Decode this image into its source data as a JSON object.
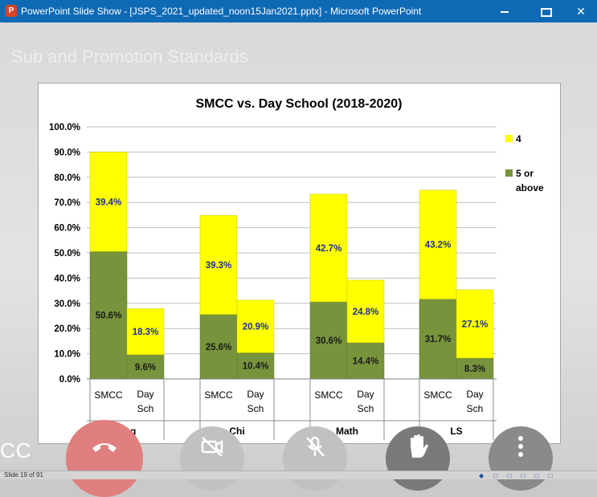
{
  "window": {
    "title": "PowerPoint Slide Show - [JSPS_2021_updated_noon15Jan2021.pptx] - Microsoft PowerPoint",
    "app_icon_letter": "P",
    "minimize_label": "—",
    "close_label": "✕"
  },
  "slide": {
    "ghost_title": "Sub and Promotion Standards"
  },
  "chart_data": {
    "type": "bar",
    "stacked": true,
    "title": "SMCC vs. Day School (2018-2020)",
    "groups": [
      "Eng",
      "Chi",
      "Math",
      "LS"
    ],
    "categories": [
      "SMCC",
      "Day Sch",
      "SMCC",
      "Day Sch",
      "SMCC",
      "Day Sch",
      "SMCC",
      "Day Sch"
    ],
    "series": [
      {
        "name": "5 or above",
        "color": "#77933c",
        "values": [
          50.6,
          9.6,
          25.6,
          10.4,
          30.6,
          14.4,
          31.7,
          8.3
        ],
        "labels": [
          "50.6%",
          "9.6%",
          "25.6%",
          "10.4%",
          "30.6%",
          "14.4%",
          "31.7%",
          "8.3%"
        ]
      },
      {
        "name": "4",
        "color": "#ffff00",
        "values": [
          39.4,
          18.3,
          39.3,
          20.9,
          42.7,
          24.8,
          43.2,
          27.1
        ],
        "labels": [
          "39.4%",
          "18.3%",
          "39.3%",
          "20.9%",
          "42.7%",
          "24.8%",
          "43.2%",
          "27.1%"
        ]
      }
    ],
    "ylim": [
      0,
      100
    ],
    "yticks": [
      "0.0%",
      "10.0%",
      "20.0%",
      "30.0%",
      "40.0%",
      "50.0%",
      "60.0%",
      "70.0%",
      "80.0%",
      "90.0%",
      "100.0%"
    ],
    "grid": true,
    "legend_position": "right"
  },
  "call": {
    "cc_label": "CC",
    "end_call": "end-call",
    "camera": "camera-off",
    "mic": "mic-off",
    "raise_hand": "raise-hand",
    "more": "more-options"
  },
  "status": {
    "slide_indicator": "Slide 19 of 91",
    "icons": "◆ □ □ □ □ □"
  }
}
